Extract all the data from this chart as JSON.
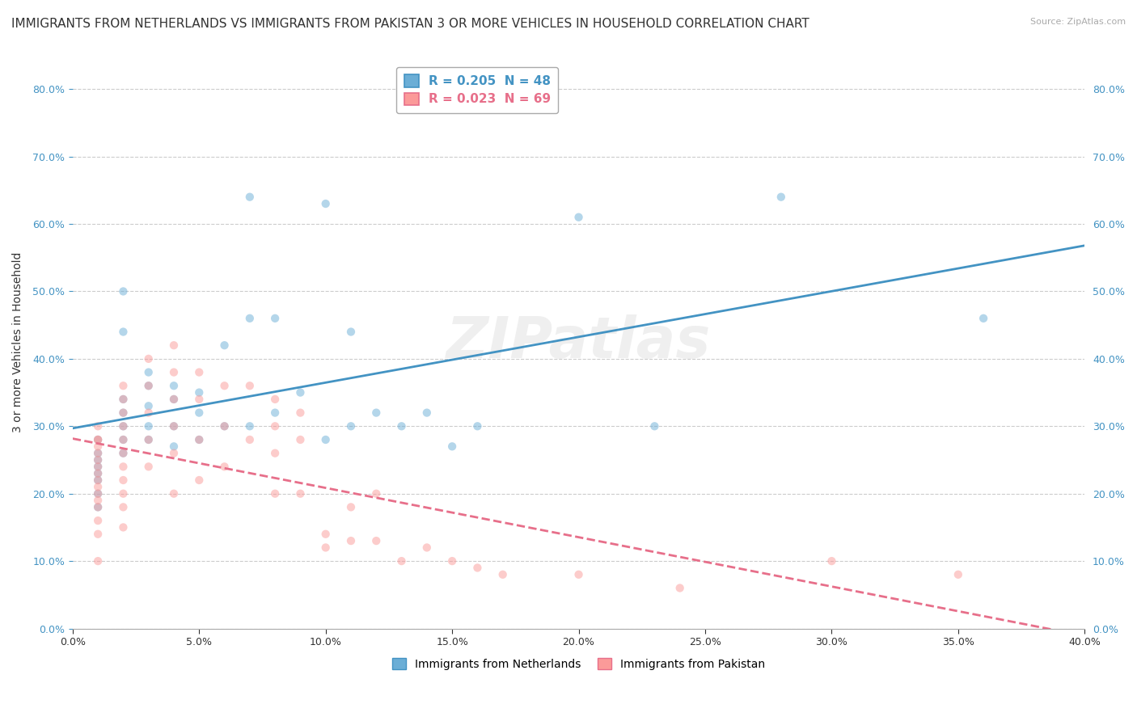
{
  "title": "IMMIGRANTS FROM NETHERLANDS VS IMMIGRANTS FROM PAKISTAN 3 OR MORE VEHICLES IN HOUSEHOLD CORRELATION CHART",
  "source": "Source: ZipAtlas.com",
  "ylabel": "3 or more Vehicles in Household",
  "legend1_label": "R = 0.205  N = 48",
  "legend2_label": "R = 0.023  N = 69",
  "legend1_color": "#6baed6",
  "legend2_color": "#fb9a99",
  "trendline1_color": "#4393c3",
  "trendline2_color": "#e76f8a",
  "watermark": "ZIPatlas",
  "xlim": [
    0.0,
    0.4
  ],
  "ylim": [
    0.0,
    0.85
  ],
  "x_ticks": [
    0.0,
    0.05,
    0.1,
    0.15,
    0.2,
    0.25,
    0.3,
    0.35,
    0.4
  ],
  "y_ticks": [
    0.0,
    0.1,
    0.2,
    0.3,
    0.4,
    0.5,
    0.6,
    0.7,
    0.8
  ],
  "netherlands_x": [
    0.01,
    0.01,
    0.01,
    0.01,
    0.01,
    0.01,
    0.01,
    0.01,
    0.02,
    0.02,
    0.02,
    0.02,
    0.02,
    0.02,
    0.02,
    0.03,
    0.03,
    0.03,
    0.03,
    0.03,
    0.04,
    0.04,
    0.04,
    0.04,
    0.05,
    0.05,
    0.05,
    0.06,
    0.06,
    0.07,
    0.07,
    0.07,
    0.08,
    0.08,
    0.09,
    0.1,
    0.1,
    0.11,
    0.11,
    0.12,
    0.13,
    0.14,
    0.15,
    0.16,
    0.2,
    0.23,
    0.28,
    0.36
  ],
  "netherlands_y": [
    0.28,
    0.26,
    0.25,
    0.24,
    0.23,
    0.22,
    0.2,
    0.18,
    0.5,
    0.44,
    0.34,
    0.32,
    0.3,
    0.28,
    0.26,
    0.38,
    0.36,
    0.33,
    0.3,
    0.28,
    0.36,
    0.34,
    0.3,
    0.27,
    0.35,
    0.32,
    0.28,
    0.42,
    0.3,
    0.64,
    0.46,
    0.3,
    0.46,
    0.32,
    0.35,
    0.63,
    0.28,
    0.44,
    0.3,
    0.32,
    0.3,
    0.32,
    0.27,
    0.3,
    0.61,
    0.3,
    0.64,
    0.46
  ],
  "pakistan_x": [
    0.01,
    0.01,
    0.01,
    0.01,
    0.01,
    0.01,
    0.01,
    0.01,
    0.01,
    0.01,
    0.01,
    0.01,
    0.01,
    0.01,
    0.01,
    0.01,
    0.02,
    0.02,
    0.02,
    0.02,
    0.02,
    0.02,
    0.02,
    0.02,
    0.02,
    0.02,
    0.02,
    0.03,
    0.03,
    0.03,
    0.03,
    0.03,
    0.04,
    0.04,
    0.04,
    0.04,
    0.04,
    0.04,
    0.05,
    0.05,
    0.05,
    0.05,
    0.06,
    0.06,
    0.06,
    0.07,
    0.07,
    0.08,
    0.08,
    0.08,
    0.08,
    0.09,
    0.09,
    0.09,
    0.1,
    0.1,
    0.11,
    0.11,
    0.12,
    0.12,
    0.13,
    0.14,
    0.15,
    0.16,
    0.17,
    0.2,
    0.24,
    0.3,
    0.35
  ],
  "pakistan_y": [
    0.3,
    0.28,
    0.28,
    0.27,
    0.26,
    0.25,
    0.24,
    0.23,
    0.22,
    0.21,
    0.2,
    0.19,
    0.18,
    0.16,
    0.14,
    0.1,
    0.36,
    0.34,
    0.32,
    0.3,
    0.28,
    0.26,
    0.24,
    0.22,
    0.2,
    0.18,
    0.15,
    0.4,
    0.36,
    0.32,
    0.28,
    0.24,
    0.42,
    0.38,
    0.34,
    0.3,
    0.26,
    0.2,
    0.38,
    0.34,
    0.28,
    0.22,
    0.36,
    0.3,
    0.24,
    0.36,
    0.28,
    0.34,
    0.3,
    0.26,
    0.2,
    0.32,
    0.28,
    0.2,
    0.14,
    0.12,
    0.18,
    0.13,
    0.2,
    0.13,
    0.1,
    0.12,
    0.1,
    0.09,
    0.08,
    0.08,
    0.06,
    0.1,
    0.08
  ],
  "background_color": "#ffffff",
  "grid_color": "#cccccc",
  "title_fontsize": 11,
  "axis_label_fontsize": 10,
  "tick_fontsize": 9,
  "scatter_size": 55,
  "scatter_alpha": 0.5
}
